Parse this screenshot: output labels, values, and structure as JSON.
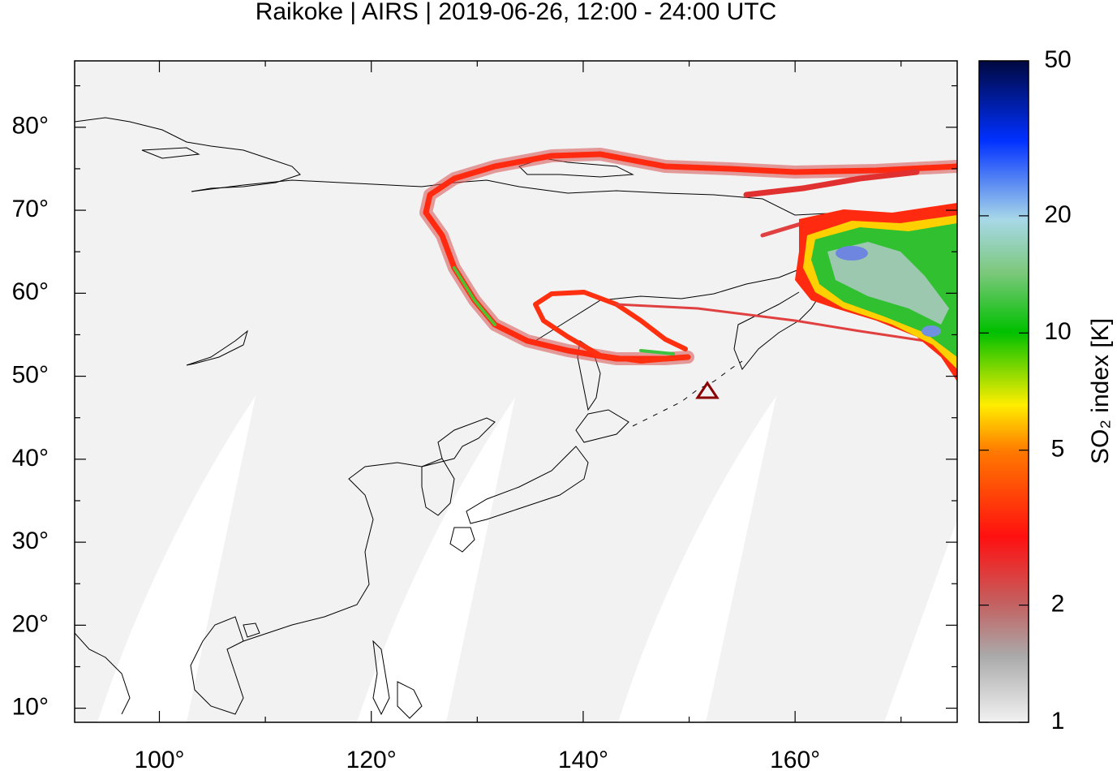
{
  "map": {
    "title": "Raikoke | AIRS | 2019-06-26, 12:00 - 24:00 UTC",
    "xlim": [
      92,
      175.3
    ],
    "ylim": [
      8.3,
      88
    ],
    "xticks": [
      {
        "value": 100,
        "label": "100°"
      },
      {
        "value": 120,
        "label": "120°"
      },
      {
        "value": 140,
        "label": "140°"
      },
      {
        "value": 160,
        "label": "160°"
      }
    ],
    "yticks": [
      {
        "value": 10,
        "label": "10°"
      },
      {
        "value": 20,
        "label": "20°"
      },
      {
        "value": 30,
        "label": "30°"
      },
      {
        "value": 40,
        "label": "40°"
      },
      {
        "value": 50,
        "label": "50°"
      },
      {
        "value": 60,
        "label": "60°"
      },
      {
        "value": 70,
        "label": "70°"
      },
      {
        "value": 80,
        "label": "80°"
      }
    ]
  },
  "colorbar": {
    "label": "SO₂ index [K]",
    "lim": [
      1,
      50
    ],
    "log": true,
    "ticks": [
      1,
      2,
      5,
      10,
      20,
      50
    ]
  }
}
